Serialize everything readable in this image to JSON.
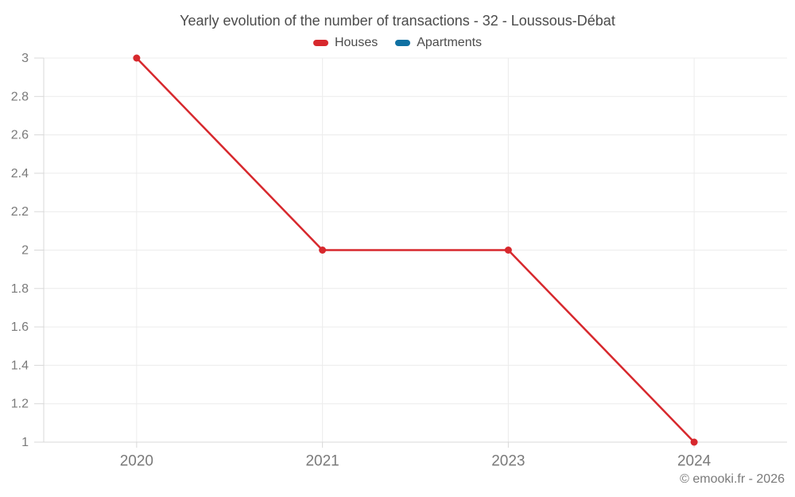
{
  "title": "Yearly evolution of the number of transactions - 32 - Loussous-Débat",
  "footer": "© emooki.fr - 2026",
  "legend": [
    {
      "label": "Houses",
      "color": "#d7282d"
    },
    {
      "label": "Apartments",
      "color": "#0f70a2"
    }
  ],
  "colors": {
    "houses": "#d7282d",
    "apartments": "#0f70a2",
    "gridline": "#ececec",
    "axis": "#d8d8d8",
    "tick_label": "#7a7a7a",
    "title_text": "#4b4b4b"
  },
  "chart_data": {
    "type": "line",
    "title": "Yearly evolution of the number of transactions - 32 - Loussous-Débat",
    "categories": [
      "2020",
      "2021",
      "2023",
      "2024"
    ],
    "series": [
      {
        "name": "Houses",
        "color": "#d7282d",
        "values": [
          3,
          2,
          2,
          1
        ]
      },
      {
        "name": "Apartments",
        "color": "#0f70a2",
        "values": []
      }
    ],
    "xlabel": "",
    "ylabel": "",
    "ylim": [
      1,
      3
    ],
    "ytick_step": 0.2,
    "yticks": [
      1,
      1.2,
      1.4,
      1.6,
      1.8,
      2,
      2.2,
      2.4,
      2.6,
      2.8,
      3
    ],
    "grid": true,
    "legend_position": "top"
  }
}
